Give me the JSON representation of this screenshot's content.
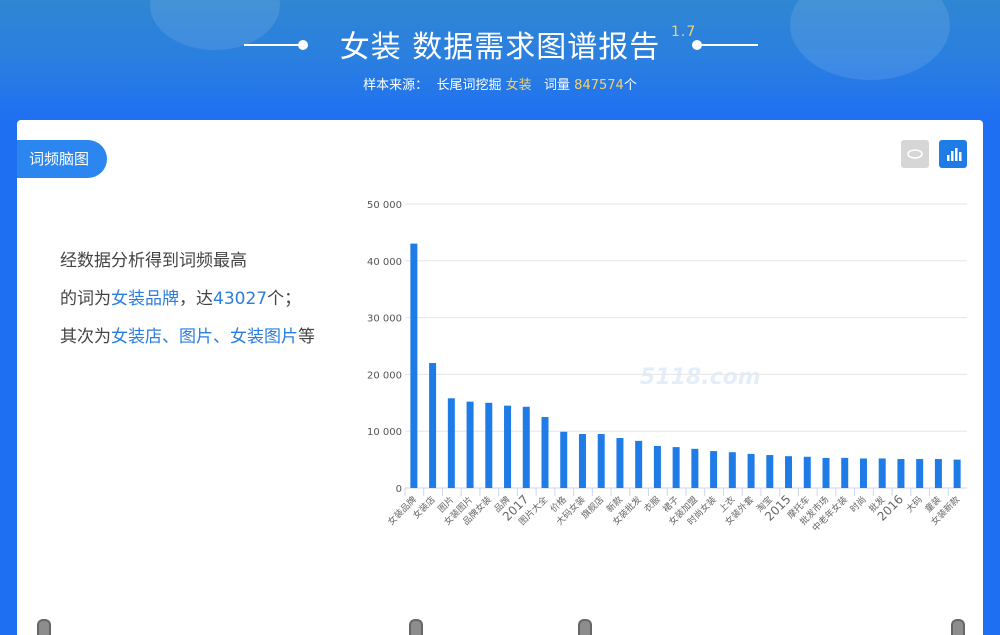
{
  "header": {
    "title": "女装 数据需求图谱报告",
    "version": "1.7",
    "source_label": "样本来源：",
    "source_tool": "长尾词挖掘",
    "keyword": "女装",
    "count_label": "词量",
    "count": "847574",
    "count_unit": "个"
  },
  "panel": {
    "tab_label": "词频脑图",
    "icons": [
      "wordcloud-icon",
      "bar-chart-icon"
    ]
  },
  "summary": {
    "line1": "经数据分析得到词频最高",
    "line2_prefix": "的词为",
    "top_word": "女装品牌",
    "line2_mid": "，达",
    "top_count": "43027",
    "line2_suffix": "个；",
    "line3_prefix": "其次为",
    "next_words": "女装店、图片、女装图片",
    "line3_suffix": "等"
  },
  "watermark": "5118.com",
  "colors": {
    "bar": "#1f7ce6",
    "accent": "#2b86ef",
    "highlight": "#f3d36b"
  },
  "chart_data": {
    "type": "bar",
    "title": "",
    "xlabel": "",
    "ylabel": "",
    "ylim": [
      0,
      50000
    ],
    "grid": true,
    "yticks": [
      "0",
      "10 000",
      "20 000",
      "30 000",
      "40 000",
      "50 000"
    ],
    "categories": [
      "女装品牌",
      "女装店",
      "图片",
      "女装图片",
      "品牌女装",
      "品牌",
      "2017",
      "图片大全",
      "价格",
      "大码女装",
      "旗舰店",
      "新款",
      "女装批发",
      "衣服",
      "裙子",
      "女装加盟",
      "时尚女装",
      "上衣",
      "女装外套",
      "淘宝",
      "2015",
      "摩托车",
      "批发市场",
      "中老年女装",
      "时尚",
      "批发",
      "2016",
      "大码",
      "童装",
      "女装新款"
    ],
    "values": [
      43027,
      22000,
      15800,
      15200,
      15000,
      14500,
      14300,
      12500,
      9900,
      9500,
      9500,
      8800,
      8300,
      7400,
      7200,
      6900,
      6500,
      6300,
      6000,
      5800,
      5600,
      5500,
      5300,
      5300,
      5200,
      5200,
      5100,
      5100,
      5100,
      5000
    ]
  }
}
